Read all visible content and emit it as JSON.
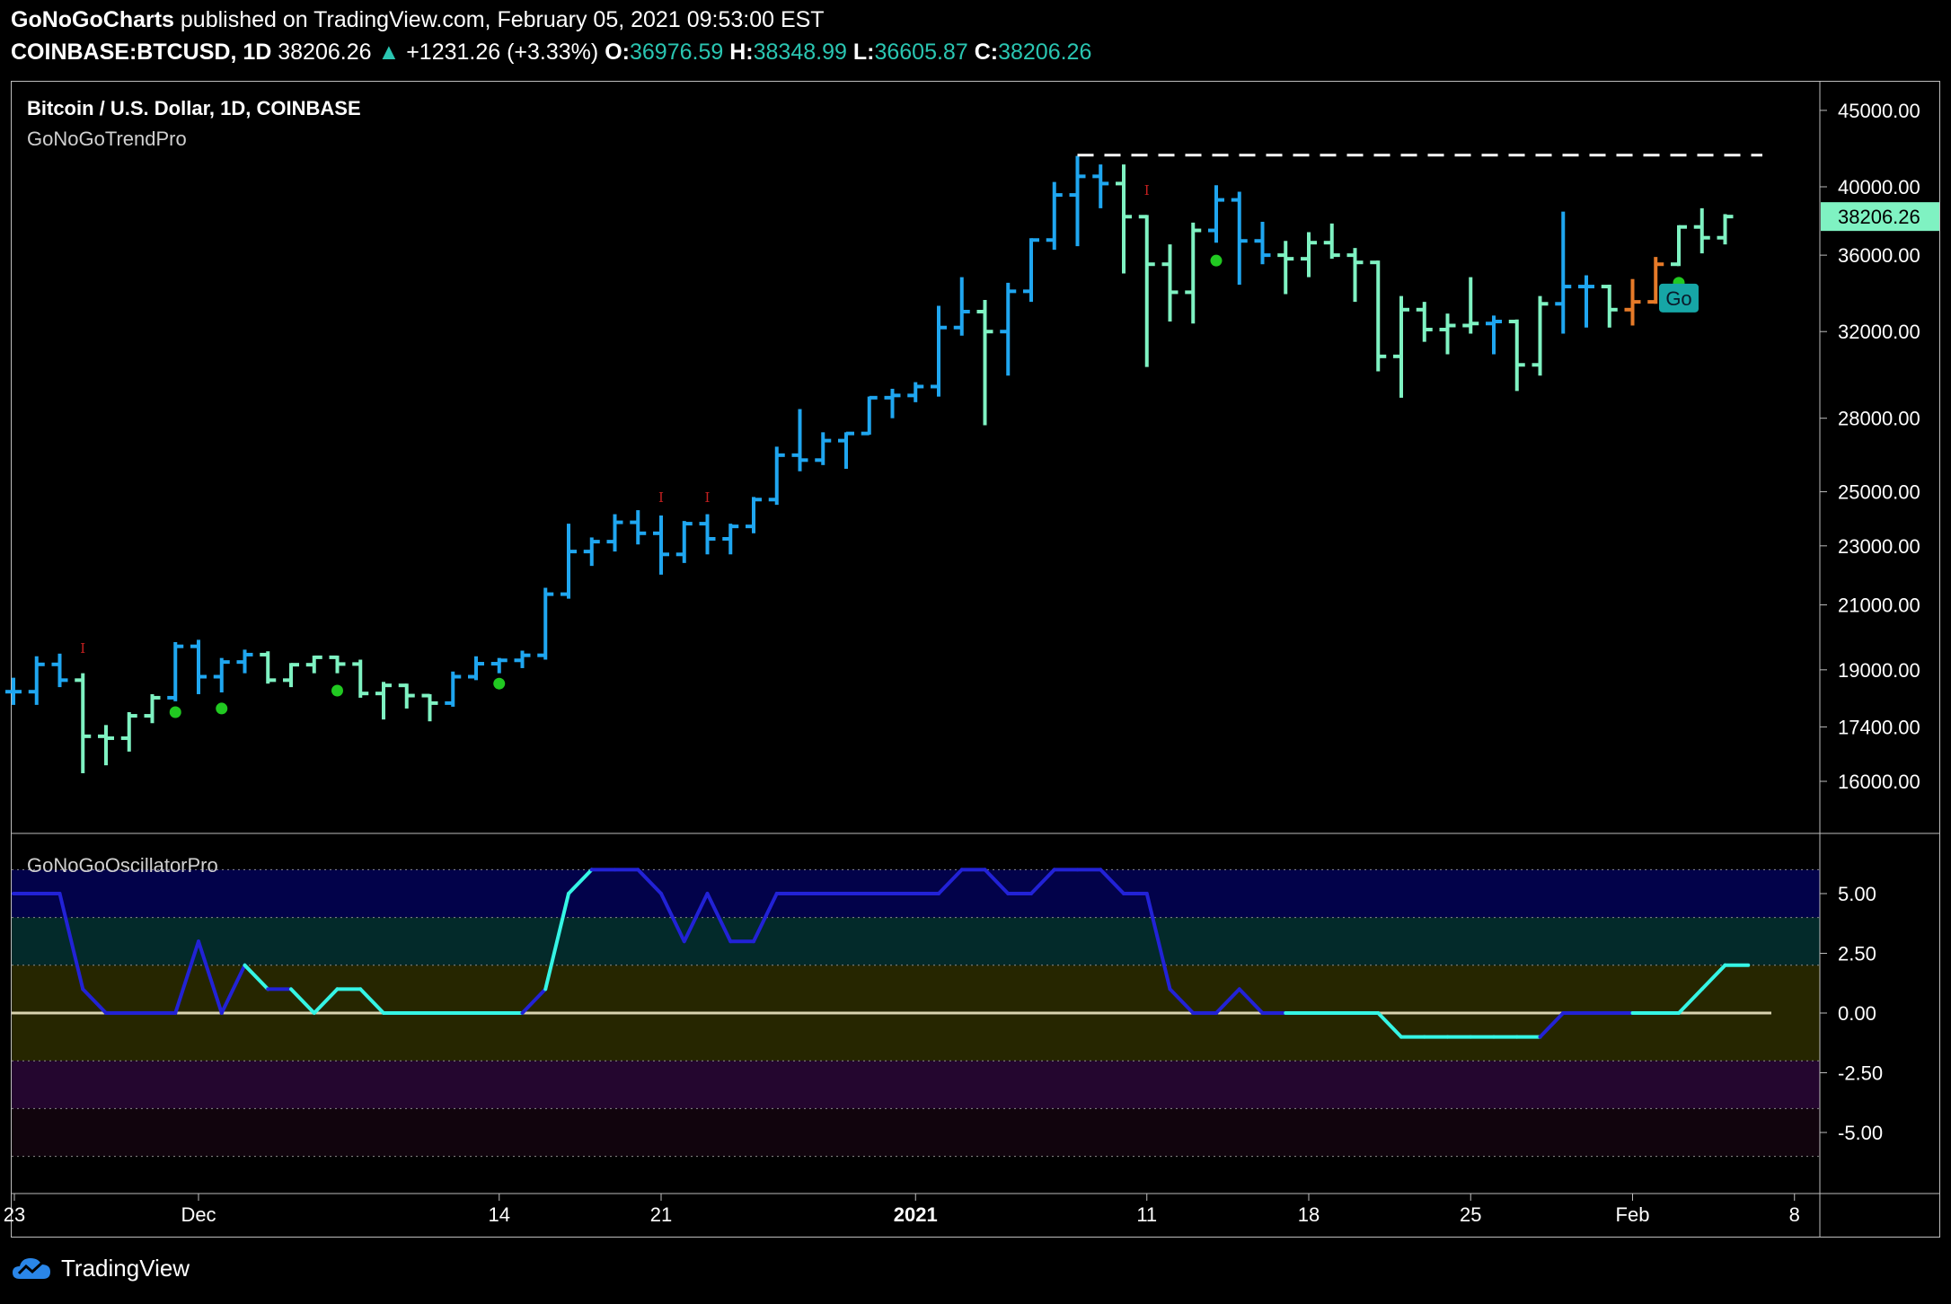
{
  "header": {
    "publisher": "GoNoGoCharts",
    "published_text": "published on TradingView.com, February 05, 2021 09:53:00 EST",
    "symbol": "COINBASE:BTCUSD, 1D",
    "last": "38206.26",
    "change": "+1231.26 (+3.33%)",
    "o_label": "O:",
    "o_value": "36976.59",
    "h_label": "H:",
    "h_value": "38348.99",
    "l_label": "L:",
    "l_value": "36605.87",
    "c_label": "C:",
    "c_value": "38206.26"
  },
  "footer": {
    "brand": "TradingView"
  },
  "colors": {
    "go_strong": "#1fa6f0",
    "go_weak": "#7ff2c2",
    "nogo": "#e67a28",
    "dot": "#21c921",
    "marker": "#c42020",
    "osc_dark_blue": "#2222d6",
    "osc_cyan": "#35f5e5",
    "price_tag": "#7ff2c2"
  },
  "chart_data": [
    {
      "type": "ohlc",
      "title": "Bitcoin / U.S. Dollar, 1D, COINBASE",
      "subtitle": "GoNoGoTrendPro",
      "y_scale": "log",
      "ylim": [
        14800,
        47000
      ],
      "y_ticks": [
        "45000.00",
        "40000.00",
        "36000.00",
        "32000.00",
        "28000.00",
        "25000.00",
        "23000.00",
        "21000.00",
        "19000.00",
        "17400.00",
        "16000.00"
      ],
      "x_ticks": [
        "23",
        "Dec",
        "14",
        "21",
        "2021",
        "11",
        "18",
        "25",
        "Feb",
        "8"
      ],
      "last_price_label": "38206.26",
      "resistance_level": 42000,
      "go_label": "Go",
      "bars": [
        {
          "date": "Nov 23",
          "o": 18370,
          "h": 18770,
          "l": 18000,
          "c": 18370,
          "color": "strong"
        },
        {
          "date": "Nov 24",
          "o": 18370,
          "h": 19400,
          "l": 18000,
          "c": 19160,
          "color": "strong"
        },
        {
          "date": "Nov 25",
          "o": 19160,
          "h": 19480,
          "l": 18500,
          "c": 18700,
          "color": "strong"
        },
        {
          "date": "Nov 26",
          "o": 18700,
          "h": 18900,
          "l": 16200,
          "c": 17150,
          "color": "weak"
        },
        {
          "date": "Nov 27",
          "o": 17150,
          "h": 17450,
          "l": 16400,
          "c": 17100,
          "color": "weak"
        },
        {
          "date": "Nov 28",
          "o": 17100,
          "h": 17800,
          "l": 16750,
          "c": 17700,
          "color": "weak"
        },
        {
          "date": "Nov 29",
          "o": 17700,
          "h": 18300,
          "l": 17500,
          "c": 18200,
          "color": "weak"
        },
        {
          "date": "Nov 30",
          "o": 18200,
          "h": 19830,
          "l": 18100,
          "c": 19700,
          "color": "strong"
        },
        {
          "date": "Dec 1",
          "o": 19700,
          "h": 19900,
          "l": 18300,
          "c": 18800,
          "color": "strong"
        },
        {
          "date": "Dec 2",
          "o": 18800,
          "h": 19350,
          "l": 18350,
          "c": 19230,
          "color": "strong"
        },
        {
          "date": "Dec 3",
          "o": 19230,
          "h": 19600,
          "l": 18900,
          "c": 19450,
          "color": "strong"
        },
        {
          "date": "Dec 4",
          "o": 19450,
          "h": 19550,
          "l": 18600,
          "c": 18700,
          "color": "weak"
        },
        {
          "date": "Dec 5",
          "o": 18700,
          "h": 19200,
          "l": 18500,
          "c": 19150,
          "color": "weak"
        },
        {
          "date": "Dec 6",
          "o": 19150,
          "h": 19420,
          "l": 18900,
          "c": 19370,
          "color": "weak"
        },
        {
          "date": "Dec 7",
          "o": 19370,
          "h": 19420,
          "l": 18900,
          "c": 19170,
          "color": "weak"
        },
        {
          "date": "Dec 8",
          "o": 19170,
          "h": 19300,
          "l": 18200,
          "c": 18320,
          "color": "weak"
        },
        {
          "date": "Dec 9",
          "o": 18320,
          "h": 18650,
          "l": 17600,
          "c": 18550,
          "color": "weak"
        },
        {
          "date": "Dec 10",
          "o": 18550,
          "h": 18600,
          "l": 17900,
          "c": 18260,
          "color": "weak"
        },
        {
          "date": "Dec 11",
          "o": 18260,
          "h": 18300,
          "l": 17550,
          "c": 18050,
          "color": "weak"
        },
        {
          "date": "Dec 12",
          "o": 18050,
          "h": 18950,
          "l": 17950,
          "c": 18800,
          "color": "strong"
        },
        {
          "date": "Dec 13",
          "o": 18800,
          "h": 19400,
          "l": 18700,
          "c": 19180,
          "color": "strong"
        },
        {
          "date": "Dec 14",
          "o": 19180,
          "h": 19350,
          "l": 18900,
          "c": 19280,
          "color": "strong"
        },
        {
          "date": "Dec 15",
          "o": 19280,
          "h": 19570,
          "l": 19050,
          "c": 19430,
          "color": "strong"
        },
        {
          "date": "Dec 16",
          "o": 19430,
          "h": 21560,
          "l": 19300,
          "c": 21350,
          "color": "strong"
        },
        {
          "date": "Dec 17",
          "o": 21350,
          "h": 23800,
          "l": 21200,
          "c": 22800,
          "color": "strong"
        },
        {
          "date": "Dec 18",
          "o": 22800,
          "h": 23300,
          "l": 22300,
          "c": 23150,
          "color": "strong"
        },
        {
          "date": "Dec 19",
          "o": 23150,
          "h": 24150,
          "l": 22800,
          "c": 23850,
          "color": "strong"
        },
        {
          "date": "Dec 20",
          "o": 23850,
          "h": 24300,
          "l": 23050,
          "c": 23450,
          "color": "strong"
        },
        {
          "date": "Dec 21",
          "o": 23450,
          "h": 24100,
          "l": 22000,
          "c": 22700,
          "color": "strong"
        },
        {
          "date": "Dec 22",
          "o": 22700,
          "h": 23900,
          "l": 22400,
          "c": 23800,
          "color": "strong"
        },
        {
          "date": "Dec 23",
          "o": 23800,
          "h": 24150,
          "l": 22700,
          "c": 23250,
          "color": "strong"
        },
        {
          "date": "Dec 24",
          "o": 23250,
          "h": 23800,
          "l": 22700,
          "c": 23700,
          "color": "strong"
        },
        {
          "date": "Dec 25",
          "o": 23700,
          "h": 24800,
          "l": 23450,
          "c": 24700,
          "color": "strong"
        },
        {
          "date": "Dec 26",
          "o": 24700,
          "h": 26800,
          "l": 24500,
          "c": 26450,
          "color": "strong"
        },
        {
          "date": "Dec 27",
          "o": 26450,
          "h": 28400,
          "l": 25800,
          "c": 26250,
          "color": "strong"
        },
        {
          "date": "Dec 28",
          "o": 26250,
          "h": 27400,
          "l": 26050,
          "c": 27050,
          "color": "strong"
        },
        {
          "date": "Dec 29",
          "o": 27050,
          "h": 27400,
          "l": 25900,
          "c": 27350,
          "color": "strong"
        },
        {
          "date": "Dec 30",
          "o": 27350,
          "h": 28950,
          "l": 27300,
          "c": 28900,
          "color": "strong"
        },
        {
          "date": "Dec 31",
          "o": 28900,
          "h": 29300,
          "l": 28000,
          "c": 29000,
          "color": "strong"
        },
        {
          "date": "Jan 1",
          "o": 29000,
          "h": 29600,
          "l": 28700,
          "c": 29400,
          "color": "strong"
        },
        {
          "date": "Jan 2",
          "o": 29400,
          "h": 33300,
          "l": 28950,
          "c": 32200,
          "color": "strong"
        },
        {
          "date": "Jan 3",
          "o": 32200,
          "h": 34800,
          "l": 31800,
          "c": 33000,
          "color": "strong"
        },
        {
          "date": "Jan 4",
          "o": 33000,
          "h": 33600,
          "l": 27700,
          "c": 32000,
          "color": "weak"
        },
        {
          "date": "Jan 5",
          "o": 32000,
          "h": 34500,
          "l": 29900,
          "c": 34050,
          "color": "strong"
        },
        {
          "date": "Jan 6",
          "o": 34050,
          "h": 36950,
          "l": 33500,
          "c": 36850,
          "color": "strong"
        },
        {
          "date": "Jan 7",
          "o": 36850,
          "h": 40300,
          "l": 36300,
          "c": 39500,
          "color": "strong"
        },
        {
          "date": "Jan 8",
          "o": 39500,
          "h": 41950,
          "l": 36500,
          "c": 40650,
          "color": "strong"
        },
        {
          "date": "Jan 9",
          "o": 40650,
          "h": 41400,
          "l": 38700,
          "c": 40200,
          "color": "strong"
        },
        {
          "date": "Jan 10",
          "o": 40200,
          "h": 41400,
          "l": 35000,
          "c": 38200,
          "color": "weak"
        },
        {
          "date": "Jan 11",
          "o": 38200,
          "h": 38300,
          "l": 30300,
          "c": 35500,
          "color": "weak"
        },
        {
          "date": "Jan 12",
          "o": 35500,
          "h": 36600,
          "l": 32500,
          "c": 34000,
          "color": "weak"
        },
        {
          "date": "Jan 13",
          "o": 34000,
          "h": 37850,
          "l": 32400,
          "c": 37400,
          "color": "weak"
        },
        {
          "date": "Jan 14",
          "o": 37400,
          "h": 40100,
          "l": 36700,
          "c": 39200,
          "color": "strong"
        },
        {
          "date": "Jan 15",
          "o": 39200,
          "h": 39700,
          "l": 34400,
          "c": 36800,
          "color": "strong"
        },
        {
          "date": "Jan 16",
          "o": 36800,
          "h": 37900,
          "l": 35500,
          "c": 36000,
          "color": "strong"
        },
        {
          "date": "Jan 17",
          "o": 36000,
          "h": 36800,
          "l": 33900,
          "c": 35800,
          "color": "weak"
        },
        {
          "date": "Jan 18",
          "o": 35800,
          "h": 37300,
          "l": 34800,
          "c": 36700,
          "color": "weak"
        },
        {
          "date": "Jan 19",
          "o": 36700,
          "h": 37800,
          "l": 35800,
          "c": 36000,
          "color": "weak"
        },
        {
          "date": "Jan 20",
          "o": 36000,
          "h": 36400,
          "l": 33500,
          "c": 35600,
          "color": "weak"
        },
        {
          "date": "Jan 21",
          "o": 35600,
          "h": 35700,
          "l": 30100,
          "c": 30800,
          "color": "weak"
        },
        {
          "date": "Jan 22",
          "o": 30800,
          "h": 33800,
          "l": 28900,
          "c": 33100,
          "color": "weak"
        },
        {
          "date": "Jan 23",
          "o": 33100,
          "h": 33500,
          "l": 31500,
          "c": 32100,
          "color": "weak"
        },
        {
          "date": "Jan 24",
          "o": 32100,
          "h": 32900,
          "l": 30900,
          "c": 32300,
          "color": "weak"
        },
        {
          "date": "Jan 25",
          "o": 32300,
          "h": 34800,
          "l": 31900,
          "c": 32400,
          "color": "weak"
        },
        {
          "date": "Jan 26",
          "o": 32400,
          "h": 32800,
          "l": 30900,
          "c": 32500,
          "color": "strong"
        },
        {
          "date": "Jan 27",
          "o": 32500,
          "h": 32600,
          "l": 29200,
          "c": 30400,
          "color": "weak"
        },
        {
          "date": "Jan 28",
          "o": 30400,
          "h": 33800,
          "l": 29900,
          "c": 33400,
          "color": "weak"
        },
        {
          "date": "Jan 29",
          "o": 33400,
          "h": 38500,
          "l": 31900,
          "c": 34300,
          "color": "strong"
        },
        {
          "date": "Jan 30",
          "o": 34300,
          "h": 34900,
          "l": 32200,
          "c": 34300,
          "color": "strong"
        },
        {
          "date": "Jan 31",
          "o": 34300,
          "h": 34400,
          "l": 32200,
          "c": 33100,
          "color": "weak"
        },
        {
          "date": "Feb 1",
          "o": 33100,
          "h": 34700,
          "l": 32300,
          "c": 33500,
          "color": "nogo"
        },
        {
          "date": "Feb 2",
          "o": 33500,
          "h": 35900,
          "l": 33400,
          "c": 35500,
          "color": "nogo"
        },
        {
          "date": "Feb 3",
          "o": 35500,
          "h": 37700,
          "l": 35400,
          "c": 37600,
          "color": "weak"
        },
        {
          "date": "Feb 4",
          "o": 37600,
          "h": 38700,
          "l": 36100,
          "c": 36980,
          "color": "weak"
        },
        {
          "date": "Feb 5",
          "o": 36980,
          "h": 38350,
          "l": 36600,
          "c": 38206,
          "color": "weak"
        }
      ],
      "dots": [
        {
          "date": "Nov 30",
          "y": 17800
        },
        {
          "date": "Dec 2",
          "y": 17900
        },
        {
          "date": "Dec 7",
          "y": 18400
        },
        {
          "date": "Dec 14",
          "y": 18600
        },
        {
          "date": "Jan 14",
          "y": 35700
        },
        {
          "date": "Feb 3",
          "y": 34500
        }
      ],
      "markers": [
        {
          "date": "Nov 26",
          "y": 19500
        },
        {
          "date": "Dec 21",
          "y": 24600
        },
        {
          "date": "Dec 23",
          "y": 24600
        },
        {
          "date": "Jan 11",
          "y": 39500
        }
      ]
    },
    {
      "type": "line",
      "title": "GoNoGoOscillatorPro",
      "ylim": [
        -6,
        6
      ],
      "y_ticks": [
        "5.00",
        "2.50",
        "0.00",
        "-2.50",
        "-5.00"
      ],
      "bands": [
        6,
        4,
        2,
        -2,
        -4,
        -6
      ],
      "zero_line": 0,
      "series": [
        {
          "values": [
            5,
            5,
            5,
            1,
            0,
            0,
            0,
            0,
            3,
            0,
            2,
            1,
            1,
            0,
            1,
            1,
            0,
            0,
            0,
            0,
            0,
            0,
            0,
            1,
            5,
            6,
            6,
            6,
            5,
            3,
            5,
            3,
            3,
            5,
            5,
            5,
            5,
            5,
            5,
            5,
            5,
            6,
            6,
            5,
            5,
            6,
            6,
            6,
            5,
            5,
            1,
            0,
            0,
            1,
            0,
            0,
            0,
            0,
            0,
            0,
            -1,
            -1,
            -1,
            -1,
            -1,
            -1,
            -1,
            0,
            0,
            0,
            0,
            0,
            0,
            1,
            2,
            2
          ]
        }
      ]
    }
  ]
}
